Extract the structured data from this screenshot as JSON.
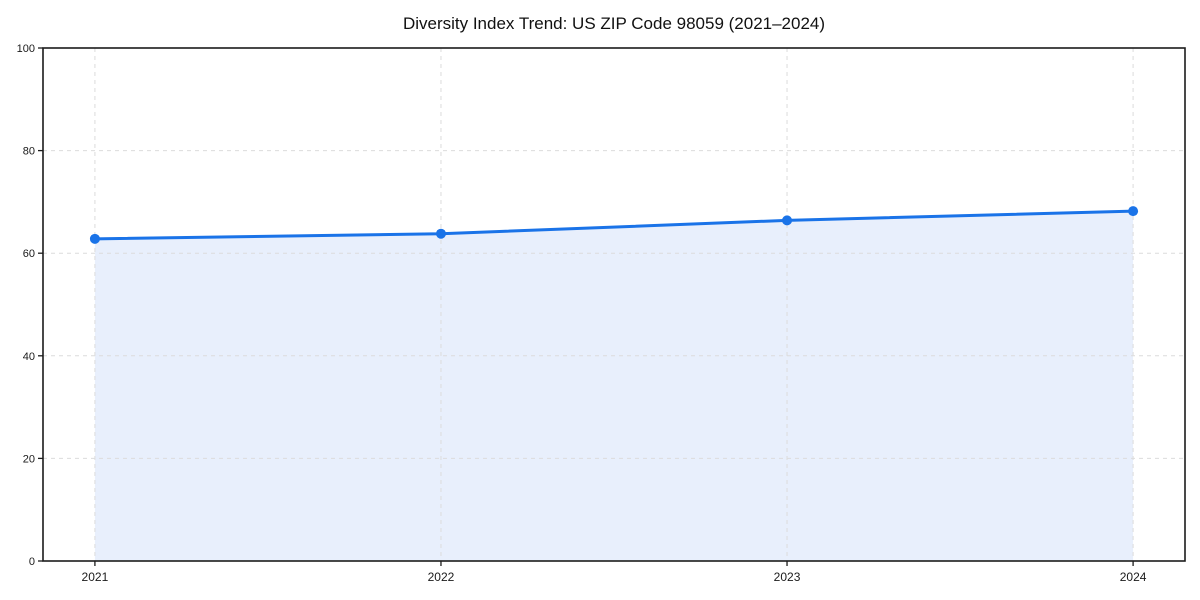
{
  "chart_data": {
    "type": "area",
    "title": "Diversity Index Trend: US ZIP Code 98059 (2021–2024)",
    "x": [
      2021,
      2022,
      2023,
      2024
    ],
    "series": [
      {
        "name": "Diversity Index",
        "values": [
          62.8,
          63.8,
          66.4,
          68.2
        ]
      }
    ],
    "xlabel": "",
    "ylabel": "",
    "xlim": [
      2020.85,
      2024.15
    ],
    "ylim": [
      0,
      100
    ],
    "xticks": [
      2021,
      2022,
      2023,
      2024
    ],
    "xtick_labels": [
      "2021",
      "2022",
      "2023",
      "2024"
    ],
    "yticks": [
      0,
      20,
      40,
      60,
      80,
      100
    ],
    "ytick_labels": [
      "0",
      "20",
      "40",
      "60",
      "80",
      "100"
    ],
    "grid": "dashed",
    "legend_position": "none",
    "colors": {
      "line": "#1a73e8",
      "marker": "#1a73e8",
      "fill": "#e8effc",
      "grid": "#dcdcdc",
      "spine": "#1c1c1c",
      "tick_label": "#1a1a1a",
      "title": "#111111",
      "background": "#ffffff"
    }
  }
}
